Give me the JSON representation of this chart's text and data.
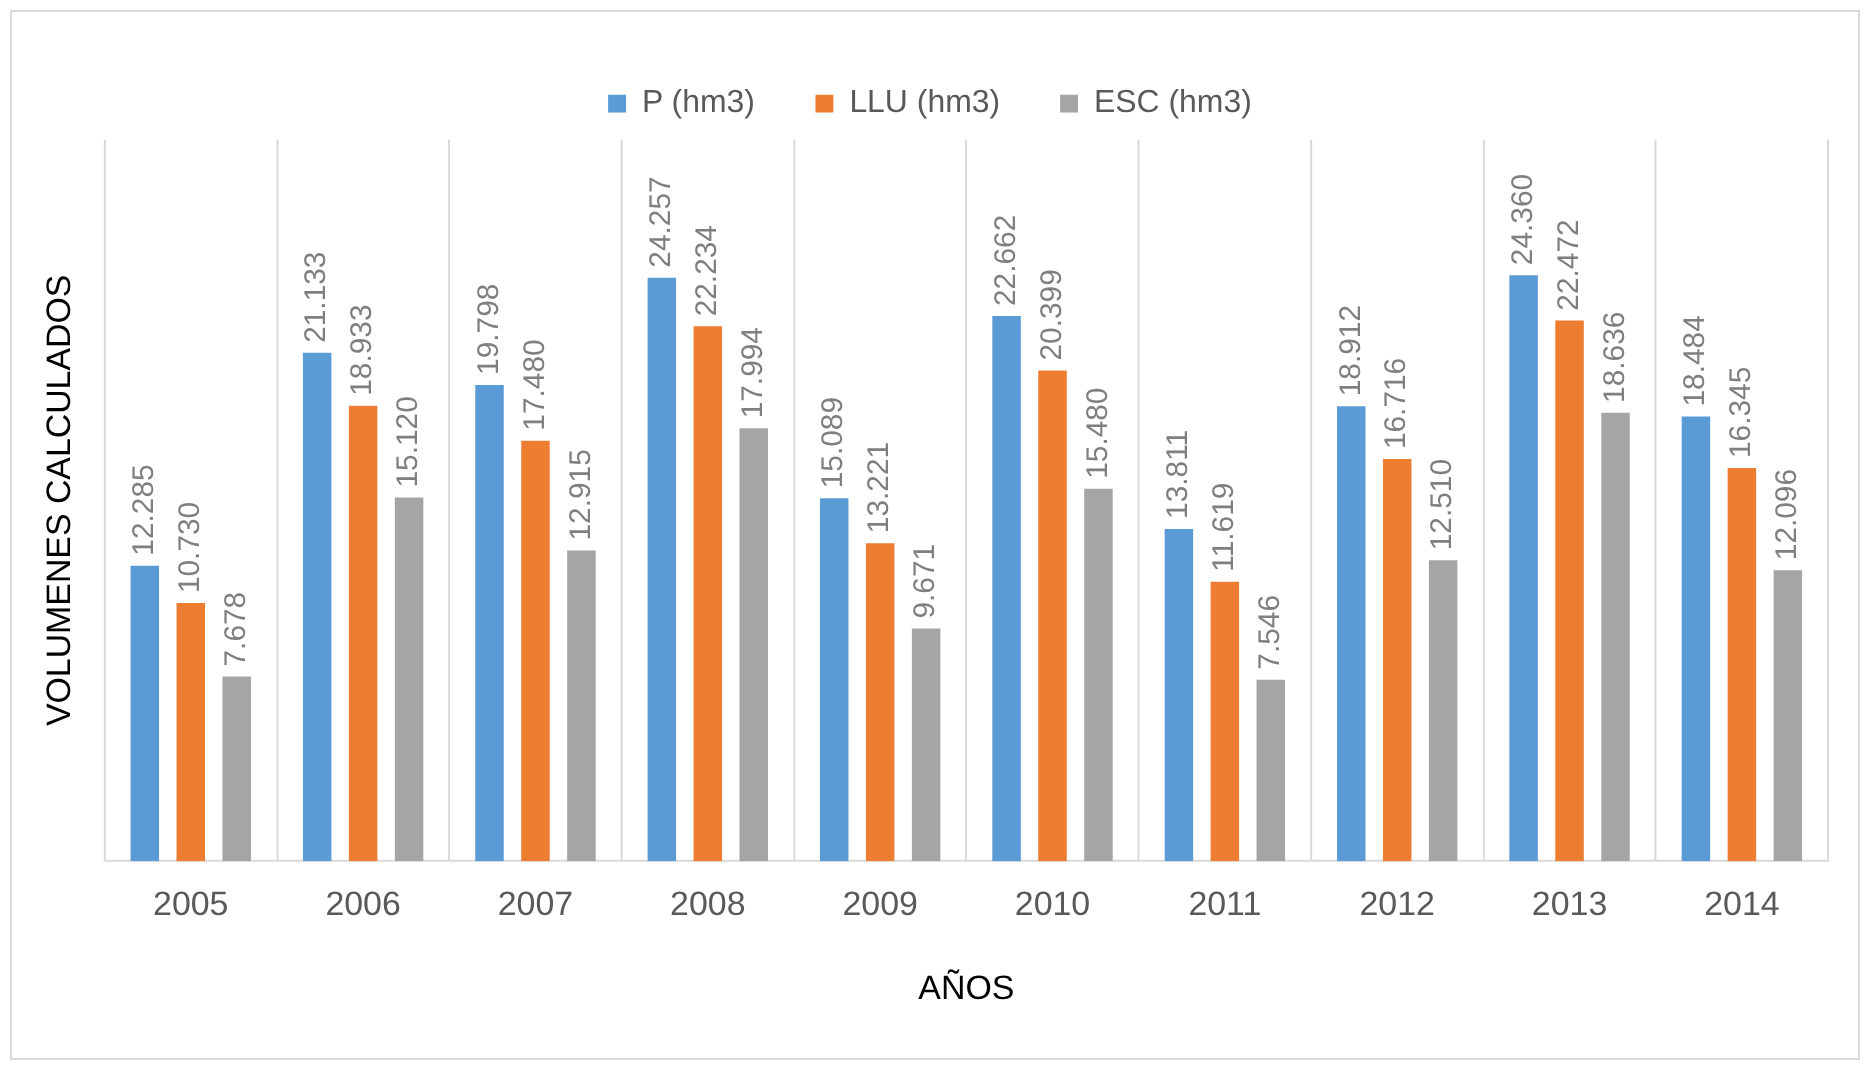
{
  "chart_data": {
    "type": "bar",
    "xlabel": "AÑOS",
    "ylabel": "VOLUMENES CALCULADOS",
    "categories": [
      "2005",
      "2006",
      "2007",
      "2008",
      "2009",
      "2010",
      "2011",
      "2012",
      "2013",
      "2014"
    ],
    "series": [
      {
        "name": "P (hm3)",
        "color": "#5b9bd5",
        "values": [
          12.285,
          21.133,
          19.798,
          24.257,
          15.089,
          22.662,
          13.811,
          18.912,
          24.36,
          18.484
        ],
        "value_labels": [
          "12.285",
          "21.133",
          "19.798",
          "24.257",
          "15.089",
          "22.662",
          "13.811",
          "18.912",
          "24.360",
          "18.484"
        ]
      },
      {
        "name": "LLU (hm3)",
        "color": "#ed7d31",
        "values": [
          10.73,
          18.933,
          17.48,
          22.234,
          13.221,
          20.399,
          11.619,
          16.716,
          22.472,
          16.345
        ],
        "value_labels": [
          "10.730",
          "18.933",
          "17.480",
          "22.234",
          "13.221",
          "20.399",
          "11.619",
          "16.716",
          "22.472",
          "16.345"
        ]
      },
      {
        "name": "ESC (hm3)",
        "color": "#a5a5a5",
        "values": [
          7.678,
          15.12,
          12.915,
          17.994,
          9.671,
          15.48,
          7.546,
          12.51,
          18.636,
          12.096
        ],
        "value_labels": [
          "7.678",
          "15.120",
          "12.915",
          "17.994",
          "9.671",
          "15.480",
          "7.546",
          "12.510",
          "18.636",
          "12.096"
        ]
      }
    ],
    "ylim": [
      0,
      30
    ],
    "tick_labels": "x",
    "grid": "x",
    "legend": "top"
  }
}
